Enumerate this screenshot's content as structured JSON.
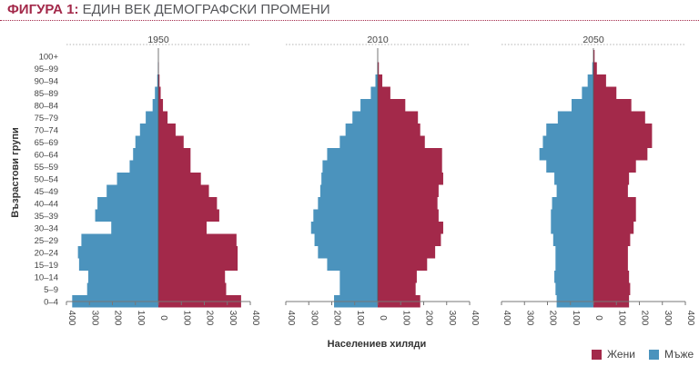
{
  "title": {
    "label": "ФИГУРА 1:",
    "text": "ЕДИН ВЕК ДЕМОГРАФСКИ ПРОМЕНИ"
  },
  "chart_data": {
    "type": "bar",
    "orientation": "horizontal",
    "kind": "population-pyramid",
    "ylabel": "Възрастови групи",
    "xlabel": "Населениев хиляди",
    "xlim": [
      -400,
      400
    ],
    "x_ticks": [
      "400",
      "300",
      "200",
      "100",
      "0",
      "100",
      "200",
      "300",
      "400"
    ],
    "categories": [
      "0–4",
      "5–9",
      "10–14",
      "15–19",
      "20–24",
      "25–29",
      "30–34",
      "35–39",
      "40–44",
      "45–49",
      "50–54",
      "55–59",
      "60–64",
      "65–69",
      "70–74",
      "75–79",
      "80–84",
      "85–89",
      "90–94",
      "95–99",
      "100+"
    ],
    "series_names": {
      "women": "Жени",
      "men": "Мъже"
    },
    "colors": {
      "women": "#a3294a",
      "men": "#4b93bd"
    },
    "grid": false,
    "legend_position": "bottom-right",
    "panels": [
      {
        "title": "1950",
        "men": [
          375,
          310,
          305,
          345,
          350,
          335,
          205,
          275,
          265,
          225,
          180,
          125,
          110,
          100,
          80,
          55,
          25,
          15,
          5,
          2,
          0
        ],
        "women": [
          360,
          295,
          290,
          345,
          345,
          340,
          210,
          265,
          255,
          220,
          185,
          140,
          140,
          110,
          75,
          40,
          20,
          10,
          5,
          2,
          0
        ]
      },
      {
        "title": "2010",
        "men": [
          190,
          165,
          165,
          220,
          260,
          275,
          290,
          280,
          260,
          250,
          245,
          240,
          220,
          165,
          140,
          110,
          75,
          30,
          10,
          2,
          0
        ],
        "women": [
          185,
          165,
          170,
          215,
          250,
          275,
          285,
          265,
          260,
          265,
          285,
          280,
          280,
          205,
          185,
          175,
          120,
          55,
          20,
          5,
          0
        ]
      },
      {
        "title": "2050",
        "men": [
          160,
          165,
          170,
          165,
          165,
          175,
          185,
          185,
          180,
          160,
          170,
          205,
          235,
          220,
          205,
          155,
          95,
          50,
          25,
          5,
          0
        ],
        "women": [
          155,
          160,
          155,
          150,
          150,
          160,
          175,
          185,
          185,
          150,
          155,
          185,
          235,
          255,
          255,
          225,
          165,
          100,
          55,
          15,
          5
        ]
      }
    ]
  }
}
